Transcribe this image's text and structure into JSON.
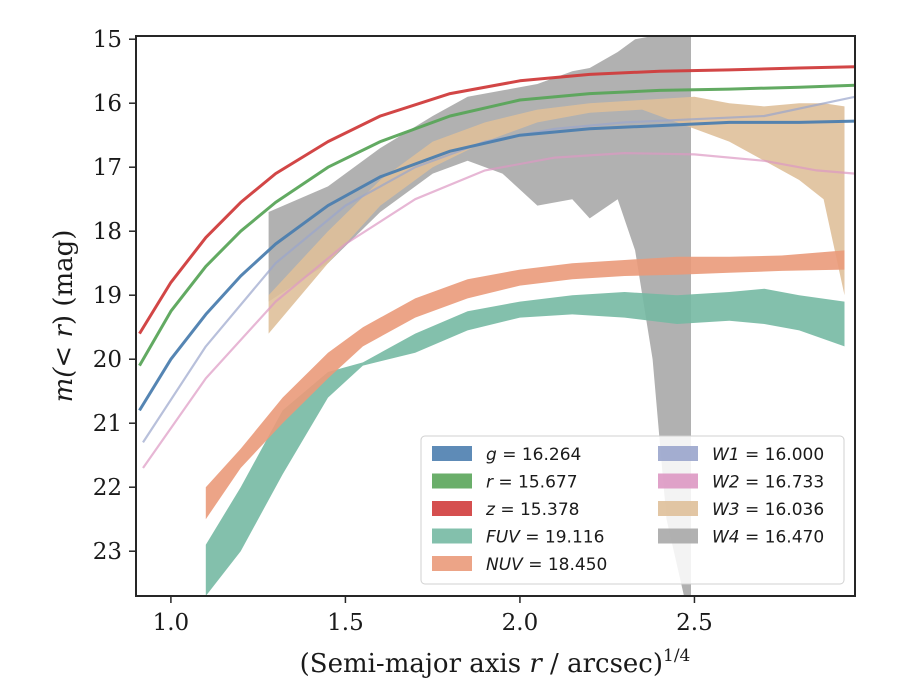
{
  "chart_data": {
    "type": "area",
    "xlabel_prefix": "(Semi-major axis ",
    "xlabel_var": "r",
    "xlabel_mid": " / arcsec)",
    "xlabel_sup": "1/4",
    "ylabel_prefix": "m(",
    "ylabel_mid": "< r",
    "ylabel_suffix": ") (mag)",
    "xlim": [
      0.9,
      2.96
    ],
    "ylim": [
      23.7,
      14.95
    ],
    "y_inverted": true,
    "xticks": [
      1.0,
      1.5,
      2.0,
      2.5
    ],
    "xtick_labels": [
      "1.0",
      "1.5",
      "2.0",
      "2.5"
    ],
    "yticks": [
      15,
      16,
      17,
      18,
      19,
      20,
      21,
      22,
      23
    ],
    "ytick_labels": [
      "15",
      "16",
      "17",
      "18",
      "19",
      "20",
      "21",
      "22",
      "23"
    ],
    "legend_position": "lower-right",
    "series": [
      {
        "key": "W4",
        "band": "W4",
        "value": "16.470",
        "color": "#a8a8a8",
        "x": [
          1.28,
          1.45,
          1.6,
          1.75,
          1.85,
          1.95,
          2.05,
          2.15,
          2.2,
          2.28,
          2.33,
          2.38,
          2.42,
          2.47,
          2.49
        ],
        "y_low": [
          19.1,
          18.5,
          17.7,
          17.1,
          16.9,
          17.1,
          17.6,
          17.5,
          17.8,
          17.5,
          18.3,
          20.0,
          22.5,
          23.7,
          23.7
        ],
        "y_high": [
          17.7,
          17.3,
          16.7,
          16.2,
          15.9,
          15.8,
          15.7,
          15.5,
          15.45,
          15.2,
          15.0,
          14.95,
          14.95,
          14.95,
          14.95
        ]
      },
      {
        "key": "W3",
        "band": "W3",
        "value": "16.036",
        "color": "#dfc09a",
        "x": [
          1.28,
          1.45,
          1.6,
          1.75,
          1.9,
          2.05,
          2.2,
          2.35,
          2.5,
          2.6,
          2.7,
          2.8,
          2.87,
          2.93
        ],
        "y_low": [
          19.6,
          18.5,
          17.6,
          17.0,
          16.6,
          16.3,
          16.15,
          16.1,
          16.4,
          16.6,
          16.9,
          17.2,
          17.5,
          19.0
        ],
        "y_high": [
          19.0,
          18.0,
          17.2,
          16.6,
          16.3,
          16.1,
          16.0,
          15.95,
          15.9,
          16.0,
          16.05,
          16.0,
          16.0,
          16.05
        ]
      },
      {
        "key": "FUV",
        "band": "FUV",
        "value": "19.116",
        "color": "#75b9a3",
        "x": [
          1.1,
          1.2,
          1.32,
          1.45,
          1.55,
          1.7,
          1.85,
          2.0,
          2.15,
          2.3,
          2.45,
          2.6,
          2.7,
          2.8,
          2.93
        ],
        "y_low": [
          23.7,
          23.0,
          21.8,
          20.6,
          20.1,
          19.9,
          19.55,
          19.35,
          19.3,
          19.35,
          19.45,
          19.4,
          19.45,
          19.55,
          19.8
        ],
        "y_high": [
          22.9,
          22.0,
          20.8,
          20.2,
          20.05,
          19.6,
          19.25,
          19.1,
          19.0,
          18.95,
          19.0,
          18.95,
          18.9,
          19.0,
          19.1
        ]
      },
      {
        "key": "NUV",
        "band": "NUV",
        "value": "18.450",
        "color": "#ea9a7a",
        "x": [
          1.1,
          1.2,
          1.32,
          1.45,
          1.55,
          1.7,
          1.85,
          2.0,
          2.15,
          2.3,
          2.45,
          2.6,
          2.75,
          2.93
        ],
        "y_low": [
          22.5,
          21.7,
          21.0,
          20.3,
          19.8,
          19.35,
          19.05,
          18.85,
          18.75,
          18.7,
          18.68,
          18.65,
          18.62,
          18.6
        ],
        "y_high": [
          22.0,
          21.4,
          20.6,
          19.9,
          19.5,
          19.05,
          18.75,
          18.6,
          18.5,
          18.45,
          18.4,
          18.4,
          18.38,
          18.3
        ]
      },
      {
        "key": "W1",
        "band": "W1",
        "value": "16.000",
        "color": "#9aa5cc",
        "x": [
          0.92,
          1.1,
          1.3,
          1.5,
          1.7,
          1.9,
          2.1,
          2.3,
          2.5,
          2.7,
          2.96
        ],
        "y_line": [
          21.3,
          19.8,
          18.5,
          17.6,
          17.0,
          16.6,
          16.4,
          16.3,
          16.25,
          16.2,
          15.9
        ]
      },
      {
        "key": "W2",
        "band": "W2",
        "value": "16.733",
        "color": "#dd98c3",
        "x": [
          0.92,
          1.1,
          1.3,
          1.5,
          1.7,
          1.9,
          2.1,
          2.3,
          2.5,
          2.7,
          2.85,
          2.96
        ],
        "y_line": [
          21.7,
          20.3,
          19.1,
          18.2,
          17.5,
          17.05,
          16.85,
          16.78,
          16.8,
          16.9,
          17.05,
          17.1
        ]
      },
      {
        "key": "g",
        "band": "g",
        "value": "16.264",
        "color": "#4c7eaf",
        "x": [
          0.91,
          1.0,
          1.1,
          1.2,
          1.3,
          1.45,
          1.6,
          1.8,
          2.0,
          2.2,
          2.4,
          2.6,
          2.8,
          2.96
        ],
        "y_line": [
          20.8,
          20.0,
          19.3,
          18.7,
          18.2,
          17.6,
          17.15,
          16.75,
          16.5,
          16.4,
          16.35,
          16.3,
          16.3,
          16.28
        ]
      },
      {
        "key": "r",
        "band": "r",
        "value": "15.677",
        "color": "#5aa55a",
        "x": [
          0.91,
          1.0,
          1.1,
          1.2,
          1.3,
          1.45,
          1.6,
          1.8,
          2.0,
          2.2,
          2.4,
          2.6,
          2.8,
          2.96
        ],
        "y_line": [
          20.1,
          19.25,
          18.55,
          18.0,
          17.55,
          17.0,
          16.6,
          16.2,
          15.95,
          15.85,
          15.8,
          15.78,
          15.75,
          15.72
        ]
      },
      {
        "key": "z",
        "band": "z",
        "value": "15.378",
        "color": "#d03c3c",
        "x": [
          0.91,
          1.0,
          1.1,
          1.2,
          1.3,
          1.45,
          1.6,
          1.8,
          2.0,
          2.2,
          2.4,
          2.6,
          2.8,
          2.96
        ],
        "y_line": [
          19.6,
          18.8,
          18.1,
          17.55,
          17.1,
          16.6,
          16.2,
          15.85,
          15.65,
          15.55,
          15.5,
          15.48,
          15.45,
          15.43
        ]
      }
    ],
    "legend": {
      "col1": [
        "g",
        "r",
        "z",
        "FUV",
        "NUV"
      ],
      "col2": [
        "W1",
        "W2",
        "W3",
        "W4"
      ]
    }
  }
}
